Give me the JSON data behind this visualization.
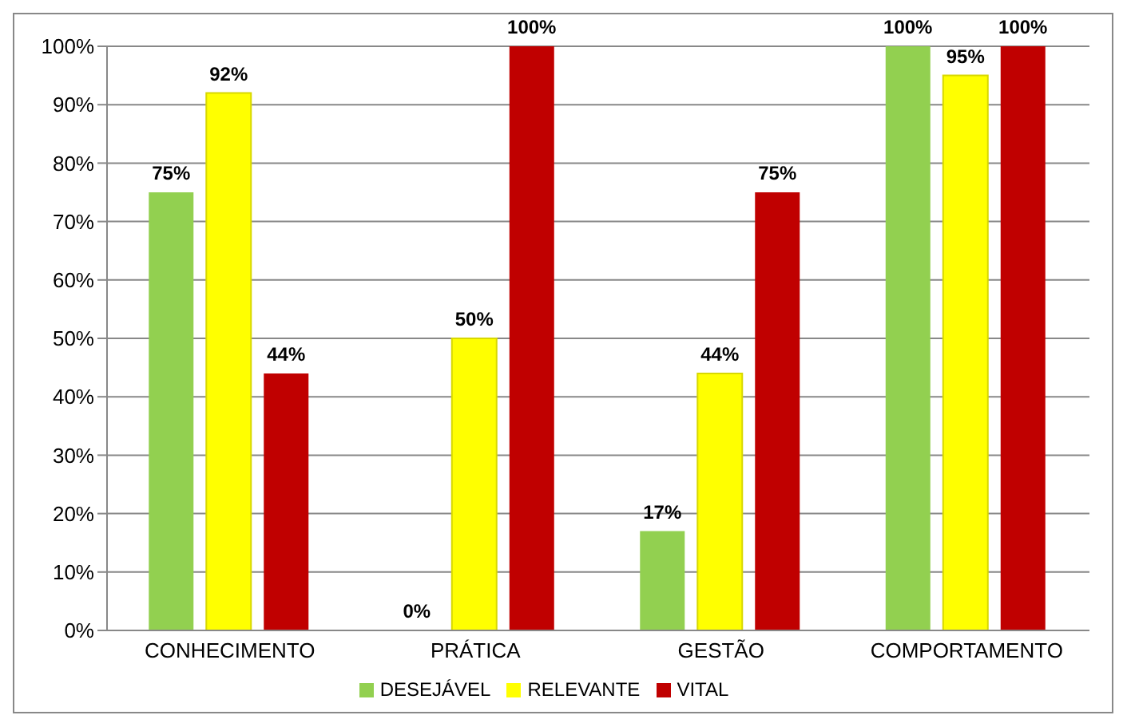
{
  "chart_data": {
    "type": "bar",
    "categories": [
      "CONHECIMENTO",
      "PRÁTICA",
      "GESTÃO",
      "COMPORTAMENTO"
    ],
    "series": [
      {
        "name": "DESEJÁVEL",
        "color": "#92d050",
        "values": [
          75,
          0,
          17,
          100
        ],
        "value_labels": [
          "75%",
          "0%",
          "17%",
          "100%"
        ]
      },
      {
        "name": "RELEVANTE",
        "color": "#ffff00",
        "values": [
          92,
          50,
          44,
          95
        ],
        "value_labels": [
          "92%",
          "50%",
          "44%",
          "95%"
        ]
      },
      {
        "name": "VITAL",
        "color": "#c00000",
        "values": [
          44,
          100,
          75,
          100
        ],
        "value_labels": [
          "44%",
          "100%",
          "75%",
          "100%"
        ]
      }
    ],
    "ylim": [
      0,
      100
    ],
    "yticks": [
      {
        "value": 0,
        "label": "0%"
      },
      {
        "value": 10,
        "label": "10%"
      },
      {
        "value": 20,
        "label": "20%"
      },
      {
        "value": 30,
        "label": "30%"
      },
      {
        "value": 40,
        "label": "40%"
      },
      {
        "value": 50,
        "label": "50%"
      },
      {
        "value": 60,
        "label": "60%"
      },
      {
        "value": 70,
        "label": "70%"
      },
      {
        "value": 80,
        "label": "80%"
      },
      {
        "value": 90,
        "label": "90%"
      },
      {
        "value": 100,
        "label": "100%"
      }
    ],
    "grid": "y",
    "legend": "bottom"
  }
}
